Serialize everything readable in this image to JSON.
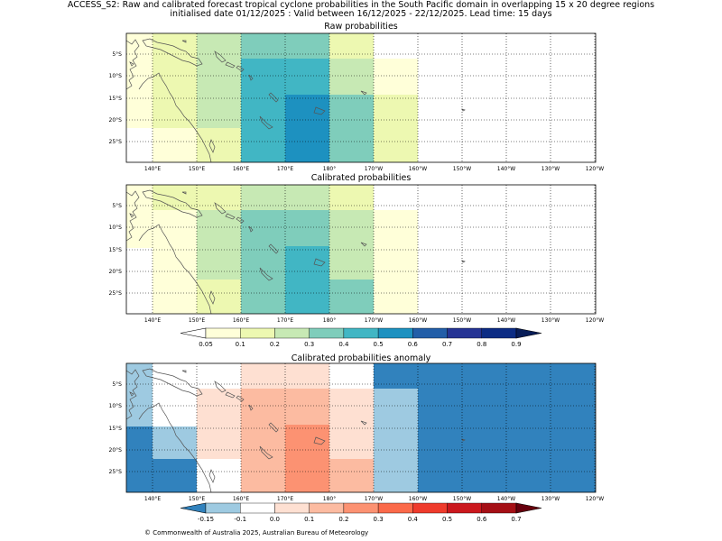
{
  "header": {
    "line1": "ACCESS_S2: Raw and calibrated forecast tropical cyclone probabilities in the South Pacific domain in overlapping 15 x 20 degree regions",
    "line2": "initialised date 01/12/2025 :  Valid between 16/12/2025 - 22/12/2025. Lead time: 15 days"
  },
  "panels": [
    {
      "id": "raw",
      "title": "Raw probabilities"
    },
    {
      "id": "cal",
      "title": "Calibrated probabilities"
    },
    {
      "id": "anom",
      "title": "Calibrated probabilities anomaly"
    }
  ],
  "axes": {
    "lon_labels": [
      "140°E",
      "150°E",
      "160°E",
      "170°E",
      "180°",
      "170°W",
      "160°W",
      "150°W",
      "140°W",
      "130°W",
      "120°W"
    ],
    "lat_labels": [
      "5°S",
      "10°S",
      "15°S",
      "20°S",
      "25°S"
    ]
  },
  "colorbar_prob": {
    "labels": [
      "0.05",
      "0.1",
      "0.2",
      "0.3",
      "0.4",
      "0.5",
      "0.6",
      "0.7",
      "0.8",
      "0.9"
    ],
    "colors": [
      "#ffffff",
      "#ffffd9",
      "#edf8b1",
      "#c7e9b4",
      "#7fcdbb",
      "#41b6c4",
      "#1d91c0",
      "#225ea8",
      "#253494",
      "#081d58"
    ]
  },
  "colorbar_anom": {
    "labels": [
      "-0.15",
      "-0.1",
      "0.0",
      "0.1",
      "0.2",
      "0.3",
      "0.4",
      "0.5",
      "0.6",
      "0.7"
    ],
    "colors": [
      "#3182bd",
      "#9ecae1",
      "#ffffff",
      "#fee0d2",
      "#fcbba1",
      "#fc9272",
      "#fb6a4a",
      "#ef3b2c",
      "#cb181d",
      "#a50f15",
      "#67000d"
    ]
  },
  "footer": "© Commonwealth of Australia 2025, Australian Bureau of Meteorology"
}
